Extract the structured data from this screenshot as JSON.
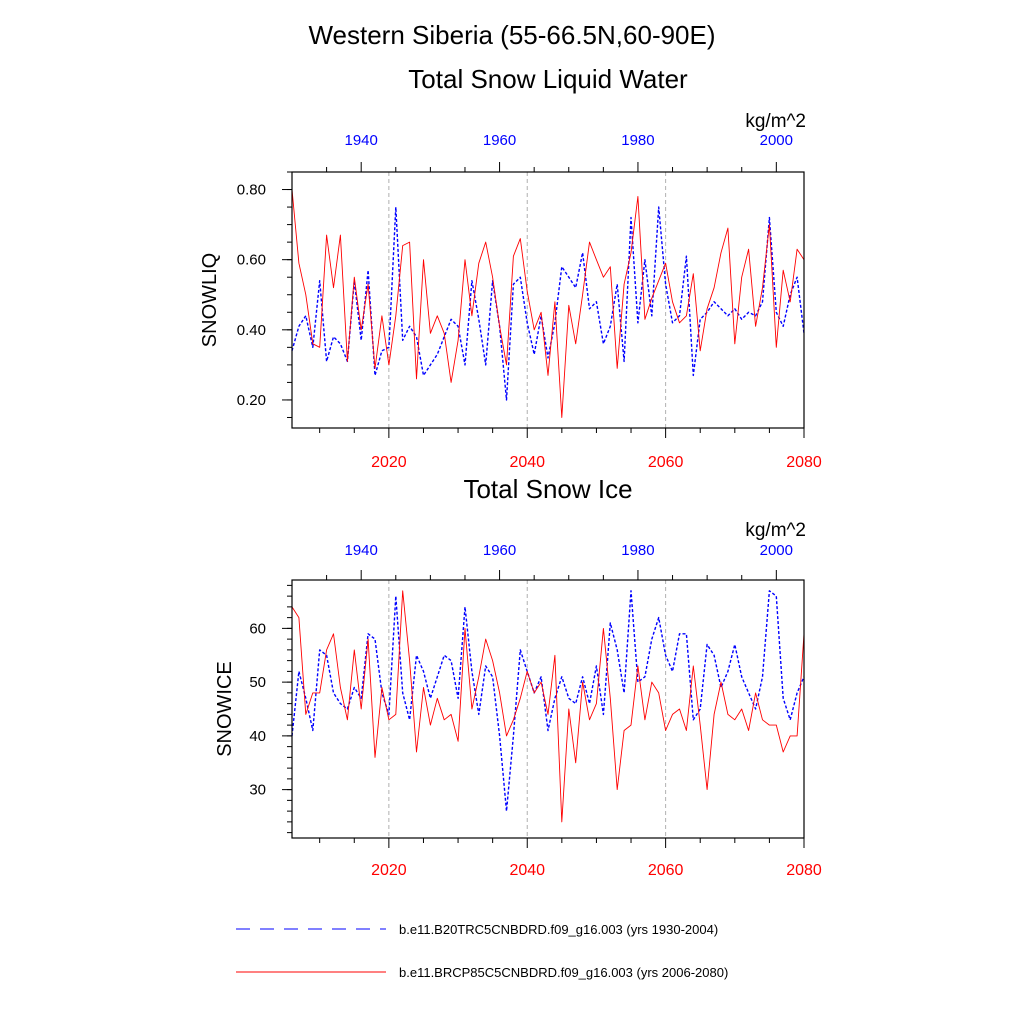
{
  "title": "Western Siberia (55-66.5N,60-90E)",
  "panels": [
    {
      "title": "Total Snow Liquid Water",
      "units": "kg/m^2",
      "ylabel": "SNOWLIQ"
    },
    {
      "title": "Total Snow Ice",
      "units": "kg/m^2",
      "ylabel": "SNOWICE"
    }
  ],
  "legend": [
    {
      "label": "b.e11.B20TRC5CNBDRD.f09_g16.003 (yrs 1930-2004)",
      "color": "#0000ff",
      "style": "dashed"
    },
    {
      "label": "b.e11.BRCP85C5CNBDRD.f09_g16.003 (yrs 2006-2080)",
      "color": "#ff0000",
      "style": "solid"
    }
  ],
  "chart_data": [
    {
      "type": "line",
      "title": "Total Snow Liquid Water",
      "ylabel": "SNOWLIQ",
      "units": "kg/m^2",
      "ylim": [
        0.12,
        0.85
      ],
      "yticks": [
        0.2,
        0.4,
        0.6,
        0.8
      ],
      "ytick_labels": [
        "0.20",
        "0.40",
        "0.60",
        "0.80"
      ],
      "x_bottom": {
        "values": [
          2006,
          2080
        ],
        "ticks": [
          2020,
          2040,
          2060,
          2080
        ],
        "color": "#ff0000"
      },
      "x_top": {
        "values": [
          1930,
          2004
        ],
        "ticks": [
          1940,
          1960,
          1980,
          2000
        ],
        "color": "#0000ff"
      },
      "grid": "dashed vertical gray lines at 2020, 2040, 2060",
      "series": [
        {
          "name": "b.e11.B20TRC5CNBDRD.f09_g16.003 (yrs 1930-2004)",
          "color": "#0000ff",
          "style": "dashed",
          "x": [
            1930,
            1931,
            1932,
            1933,
            1934,
            1935,
            1936,
            1937,
            1938,
            1939,
            1940,
            1941,
            1942,
            1943,
            1944,
            1945,
            1946,
            1947,
            1948,
            1949,
            1950,
            1951,
            1952,
            1953,
            1954,
            1955,
            1956,
            1957,
            1958,
            1959,
            1960,
            1961,
            1962,
            1963,
            1964,
            1965,
            1966,
            1967,
            1968,
            1969,
            1970,
            1971,
            1972,
            1973,
            1974,
            1975,
            1976,
            1977,
            1978,
            1979,
            1980,
            1981,
            1982,
            1983,
            1984,
            1985,
            1986,
            1987,
            1988,
            1989,
            1990,
            1991,
            1992,
            1993,
            1994,
            1995,
            1996,
            1997,
            1998,
            1999,
            2000,
            2001,
            2002,
            2003,
            2004
          ],
          "values": [
            0.34,
            0.41,
            0.44,
            0.35,
            0.54,
            0.31,
            0.38,
            0.36,
            0.31,
            0.54,
            0.37,
            0.57,
            0.27,
            0.34,
            0.35,
            0.75,
            0.37,
            0.41,
            0.38,
            0.27,
            0.3,
            0.33,
            0.38,
            0.43,
            0.41,
            0.3,
            0.54,
            0.43,
            0.3,
            0.54,
            0.41,
            0.2,
            0.53,
            0.55,
            0.42,
            0.33,
            0.44,
            0.32,
            0.42,
            0.58,
            0.55,
            0.52,
            0.62,
            0.46,
            0.48,
            0.36,
            0.41,
            0.53,
            0.31,
            0.72,
            0.42,
            0.6,
            0.44,
            0.75,
            0.53,
            0.42,
            0.44,
            0.61,
            0.27,
            0.43,
            0.45,
            0.48,
            0.46,
            0.44,
            0.46,
            0.43,
            0.45,
            0.44,
            0.48,
            0.72,
            0.45,
            0.41,
            0.5,
            0.55,
            0.39
          ]
        },
        {
          "name": "b.e11.BRCP85C5CNBDRD.f09_g16.003 (yrs 2006-2080)",
          "color": "#ff0000",
          "style": "solid",
          "x": [
            2006,
            2007,
            2008,
            2009,
            2010,
            2011,
            2012,
            2013,
            2014,
            2015,
            2016,
            2017,
            2018,
            2019,
            2020,
            2021,
            2022,
            2023,
            2024,
            2025,
            2026,
            2027,
            2028,
            2029,
            2030,
            2031,
            2032,
            2033,
            2034,
            2035,
            2036,
            2037,
            2038,
            2039,
            2040,
            2041,
            2042,
            2043,
            2044,
            2045,
            2046,
            2047,
            2048,
            2049,
            2050,
            2051,
            2052,
            2053,
            2054,
            2055,
            2056,
            2057,
            2058,
            2059,
            2060,
            2061,
            2062,
            2063,
            2064,
            2065,
            2066,
            2067,
            2068,
            2069,
            2070,
            2071,
            2072,
            2073,
            2074,
            2075,
            2076,
            2077,
            2078,
            2079,
            2080
          ],
          "values": [
            0.8,
            0.59,
            0.5,
            0.36,
            0.35,
            0.67,
            0.52,
            0.67,
            0.31,
            0.55,
            0.4,
            0.53,
            0.29,
            0.44,
            0.3,
            0.44,
            0.64,
            0.65,
            0.26,
            0.6,
            0.39,
            0.44,
            0.39,
            0.25,
            0.37,
            0.6,
            0.44,
            0.59,
            0.65,
            0.55,
            0.41,
            0.3,
            0.61,
            0.66,
            0.51,
            0.4,
            0.45,
            0.27,
            0.48,
            0.15,
            0.47,
            0.36,
            0.5,
            0.65,
            0.6,
            0.55,
            0.58,
            0.29,
            0.53,
            0.62,
            0.78,
            0.43,
            0.49,
            0.54,
            0.59,
            0.48,
            0.42,
            0.44,
            0.56,
            0.34,
            0.46,
            0.52,
            0.62,
            0.69,
            0.36,
            0.55,
            0.63,
            0.41,
            0.52,
            0.7,
            0.35,
            0.57,
            0.48,
            0.63,
            0.6
          ]
        }
      ]
    },
    {
      "type": "line",
      "title": "Total Snow Ice",
      "ylabel": "SNOWICE",
      "units": "kg/m^2",
      "ylim": [
        21,
        69
      ],
      "yticks": [
        30,
        40,
        50,
        60
      ],
      "ytick_labels": [
        "30",
        "40",
        "50",
        "60"
      ],
      "x_bottom": {
        "values": [
          2006,
          2080
        ],
        "ticks": [
          2020,
          2040,
          2060,
          2080
        ],
        "color": "#ff0000"
      },
      "x_top": {
        "values": [
          1930,
          2004
        ],
        "ticks": [
          1940,
          1960,
          1980,
          2000
        ],
        "color": "#0000ff"
      },
      "grid": "dashed vertical gray lines at 2020, 2040, 2060",
      "series": [
        {
          "name": "b.e11.B20TRC5CNBDRD.f09_g16.003 (yrs 1930-2004)",
          "color": "#0000ff",
          "style": "dashed",
          "x": [
            1930,
            1931,
            1932,
            1933,
            1934,
            1935,
            1936,
            1937,
            1938,
            1939,
            1940,
            1941,
            1942,
            1943,
            1944,
            1945,
            1946,
            1947,
            1948,
            1949,
            1950,
            1951,
            1952,
            1953,
            1954,
            1955,
            1956,
            1957,
            1958,
            1959,
            1960,
            1961,
            1962,
            1963,
            1964,
            1965,
            1966,
            1967,
            1968,
            1969,
            1970,
            1971,
            1972,
            1973,
            1974,
            1975,
            1976,
            1977,
            1978,
            1979,
            1980,
            1981,
            1982,
            1983,
            1984,
            1985,
            1986,
            1987,
            1988,
            1989,
            1990,
            1991,
            1992,
            1993,
            1994,
            1995,
            1996,
            1997,
            1998,
            1999,
            2000,
            2001,
            2002,
            2003,
            2004
          ],
          "values": [
            40,
            52,
            47,
            41,
            56,
            55,
            48,
            46,
            45,
            49,
            47,
            59,
            58,
            48,
            44,
            66,
            48,
            43,
            55,
            52,
            47,
            51,
            55,
            54,
            47,
            64,
            52,
            44,
            53,
            51,
            40,
            26,
            40,
            56,
            52,
            48,
            51,
            41,
            47,
            51,
            47,
            46,
            51,
            46,
            53,
            44,
            61,
            56,
            48,
            67,
            50,
            51,
            58,
            62,
            55,
            52,
            59,
            59,
            43,
            45,
            57,
            55,
            49,
            52,
            57,
            51,
            48,
            45,
            51,
            67,
            66,
            47,
            43,
            48,
            51
          ]
        },
        {
          "name": "b.e11.BRCP85C5CNBDRD.f09_g16.003 (yrs 2006-2080)",
          "color": "#ff0000",
          "style": "solid",
          "x": [
            2006,
            2007,
            2008,
            2009,
            2010,
            2011,
            2012,
            2013,
            2014,
            2015,
            2016,
            2017,
            2018,
            2019,
            2020,
            2021,
            2022,
            2023,
            2024,
            2025,
            2026,
            2027,
            2028,
            2029,
            2030,
            2031,
            2032,
            2033,
            2034,
            2035,
            2036,
            2037,
            2038,
            2039,
            2040,
            2041,
            2042,
            2043,
            2044,
            2045,
            2046,
            2047,
            2048,
            2049,
            2050,
            2051,
            2052,
            2053,
            2054,
            2055,
            2056,
            2057,
            2058,
            2059,
            2060,
            2061,
            2062,
            2063,
            2064,
            2065,
            2066,
            2067,
            2068,
            2069,
            2070,
            2071,
            2072,
            2073,
            2074,
            2075,
            2076,
            2077,
            2078,
            2079,
            2080
          ],
          "values": [
            64,
            62,
            44,
            48,
            48,
            56,
            59,
            49,
            43,
            56,
            45,
            58,
            36,
            49,
            43,
            44,
            67,
            54,
            37,
            49,
            42,
            47,
            43,
            44,
            39,
            60,
            45,
            51,
            58,
            54,
            48,
            40,
            43,
            47,
            52,
            48,
            50,
            44,
            55,
            24,
            45,
            35,
            50,
            43,
            46,
            60,
            47,
            30,
            41,
            42,
            53,
            43,
            50,
            48,
            41,
            44,
            45,
            41,
            53,
            42,
            30,
            44,
            50,
            44,
            43,
            45,
            41,
            48,
            43,
            42,
            42,
            37,
            40,
            40,
            59
          ]
        }
      ]
    }
  ]
}
